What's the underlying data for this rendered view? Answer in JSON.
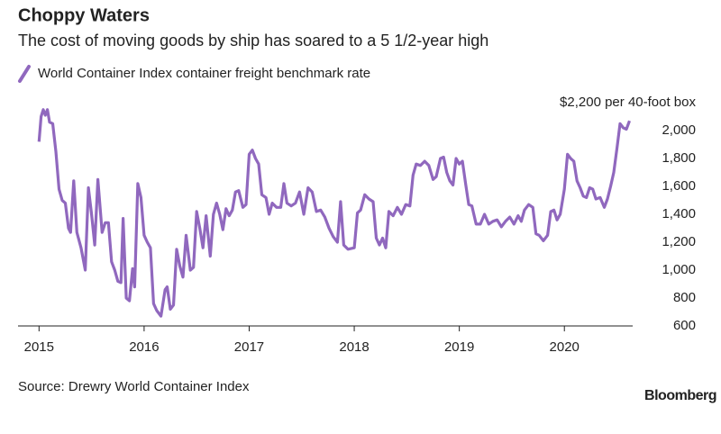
{
  "chart_data": {
    "type": "line",
    "title": "Choppy Waters",
    "subtitle": "The cost of moving goods by ship has soared to a 5 1/2-year high",
    "source": "Source: Drewry World Container Index",
    "brand": "Bloomberg",
    "x": [
      2015.0,
      2015.02,
      2015.04,
      2015.06,
      2015.08,
      2015.1,
      2015.13,
      2015.16,
      2015.19,
      2015.22,
      2015.25,
      2015.28,
      2015.3,
      2015.33,
      2015.36,
      2015.4,
      2015.44,
      2015.47,
      2015.5,
      2015.53,
      2015.56,
      2015.6,
      2015.63,
      2015.66,
      2015.69,
      2015.72,
      2015.75,
      2015.78,
      2015.8,
      2015.83,
      2015.86,
      2015.89,
      2015.91,
      2015.94,
      2015.97,
      2016.0,
      2016.03,
      2016.06,
      2016.09,
      2016.12,
      2016.16,
      2016.2,
      2016.22,
      2016.25,
      2016.28,
      2016.31,
      2016.34,
      2016.37,
      2016.4,
      2016.44,
      2016.47,
      2016.5,
      2016.53,
      2016.56,
      2016.59,
      2016.63,
      2016.66,
      2016.69,
      2016.72,
      2016.75,
      2016.78,
      2016.81,
      2016.84,
      2016.87,
      2016.9,
      2016.94,
      2016.97,
      2017.0,
      2017.03,
      2017.06,
      2017.09,
      2017.12,
      2017.16,
      2017.19,
      2017.22,
      2017.26,
      2017.3,
      2017.33,
      2017.36,
      2017.4,
      2017.44,
      2017.48,
      2017.52,
      2017.56,
      2017.6,
      2017.64,
      2017.68,
      2017.72,
      2017.76,
      2017.8,
      2017.84,
      2017.87,
      2017.9,
      2017.94,
      2018.0,
      2018.03,
      2018.06,
      2018.1,
      2018.14,
      2018.18,
      2018.21,
      2018.24,
      2018.27,
      2018.3,
      2018.33,
      2018.37,
      2018.41,
      2018.45,
      2018.49,
      2018.53,
      2018.56,
      2018.59,
      2018.63,
      2018.67,
      2018.71,
      2018.75,
      2018.78,
      2018.82,
      2018.85,
      2018.88,
      2018.91,
      2018.94,
      2018.97,
      2019.0,
      2019.03,
      2019.06,
      2019.09,
      2019.12,
      2019.16,
      2019.2,
      2019.24,
      2019.28,
      2019.32,
      2019.36,
      2019.4,
      2019.44,
      2019.48,
      2019.52,
      2019.56,
      2019.59,
      2019.62,
      2019.66,
      2019.7,
      2019.73,
      2019.76,
      2019.8,
      2019.84,
      2019.87,
      2019.9,
      2019.93,
      2019.96,
      2020.0,
      2020.03,
      2020.06,
      2020.09,
      2020.12,
      2020.15,
      2020.18,
      2020.21,
      2020.24,
      2020.27,
      2020.3,
      2020.34,
      2020.38,
      2020.41,
      2020.44,
      2020.47,
      2020.5,
      2020.53,
      2020.56,
      2020.59,
      2020.62
    ],
    "series": [
      {
        "name": "World Container Index container freight benchmark rate",
        "color": "#9068be",
        "values": [
          1920,
          2100,
          2150,
          2110,
          2150,
          2060,
          2050,
          1850,
          1580,
          1500,
          1480,
          1300,
          1270,
          1640,
          1270,
          1160,
          1000,
          1590,
          1400,
          1180,
          1650,
          1270,
          1340,
          1340,
          1060,
          1000,
          920,
          910,
          1370,
          800,
          780,
          1010,
          880,
          1620,
          1520,
          1250,
          1200,
          1160,
          760,
          710,
          670,
          860,
          880,
          720,
          750,
          1150,
          1030,
          950,
          1250,
          1000,
          1020,
          1420,
          1300,
          1160,
          1390,
          1100,
          1400,
          1480,
          1400,
          1290,
          1440,
          1390,
          1430,
          1560,
          1570,
          1450,
          1470,
          1830,
          1860,
          1800,
          1760,
          1540,
          1520,
          1400,
          1480,
          1450,
          1450,
          1620,
          1480,
          1460,
          1480,
          1560,
          1400,
          1590,
          1560,
          1420,
          1430,
          1380,
          1300,
          1240,
          1200,
          1490,
          1180,
          1150,
          1160,
          1410,
          1430,
          1540,
          1510,
          1490,
          1230,
          1180,
          1230,
          1160,
          1420,
          1390,
          1450,
          1400,
          1470,
          1460,
          1680,
          1760,
          1750,
          1780,
          1750,
          1650,
          1670,
          1800,
          1810,
          1700,
          1640,
          1610,
          1800,
          1760,
          1780,
          1620,
          1470,
          1460,
          1330,
          1330,
          1400,
          1330,
          1350,
          1360,
          1310,
          1350,
          1380,
          1330,
          1390,
          1350,
          1430,
          1470,
          1450,
          1260,
          1250,
          1210,
          1250,
          1420,
          1430,
          1360,
          1400,
          1580,
          1830,
          1800,
          1780,
          1640,
          1590,
          1530,
          1520,
          1590,
          1580,
          1510,
          1520,
          1450,
          1510,
          1600,
          1700,
          1870,
          2050,
          2020,
          2010,
          2070
        ]
      }
    ],
    "xlim": [
      2014.8,
      2020.65
    ],
    "xticks": [
      2015,
      2016,
      2017,
      2018,
      2019,
      2020
    ],
    "ylim": [
      600,
      2200
    ],
    "yticks": [
      600,
      800,
      {
        "value": 1000,
        "label": "1,000"
      },
      {
        "value": 1200,
        "label": "1,200"
      },
      {
        "value": 1400,
        "label": "1,400"
      },
      {
        "value": 1600,
        "label": "1,600"
      },
      {
        "value": 1800,
        "label": "1,800"
      },
      {
        "value": 2000,
        "label": "2,000"
      },
      {
        "value": 2200,
        "label": "$2,200 per 40-foot box"
      }
    ],
    "grid": false
  }
}
